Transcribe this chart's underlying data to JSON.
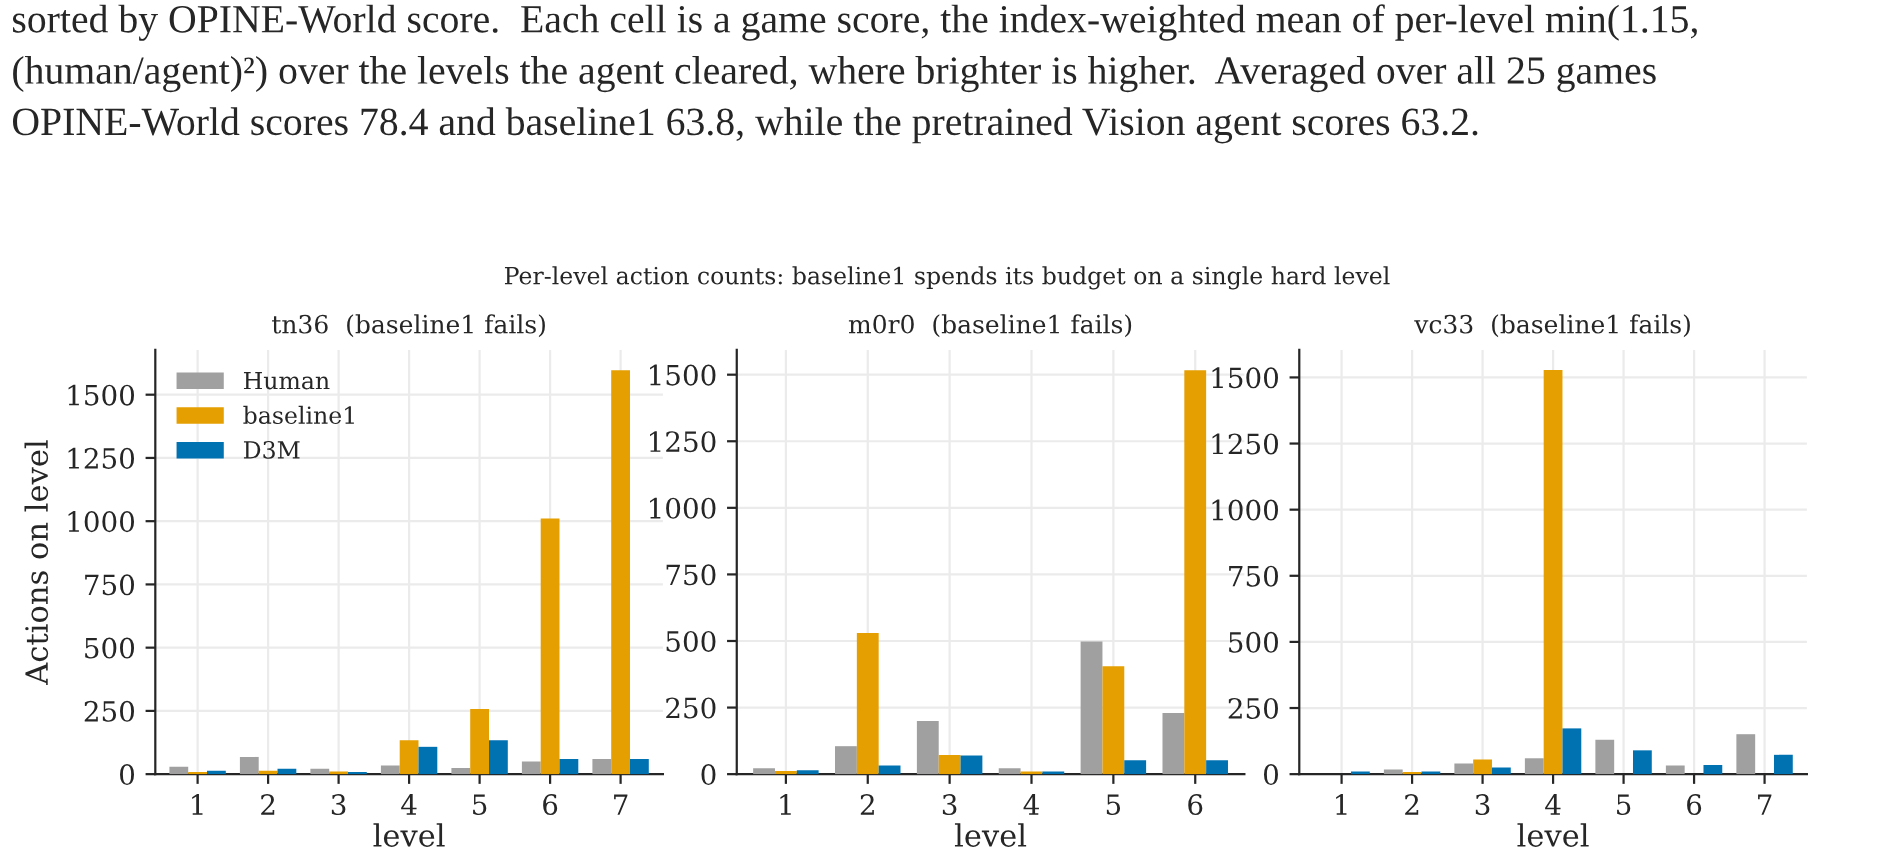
{
  "chart_data": [
    {
      "type": "bar",
      "title": "tn36  (baseline1 fails)",
      "xlabel": "level",
      "ylabel": "Actions on level",
      "annotations": [
        "sorted by OPINE-World score.  Each cell is a game score, the index-weighted mean of per-level min(1.15, (human/agent)²) over the levels the agent cleared, where brighter is higher.  Averaged over all 25 games OPINE-World scores 78.4 and baseline1 63.8, while the pretrained Vision agent scores 63.2.",
        "Per-level action counts: baseline1 spends its budget on a single hard level"
      ],
      "categories": [
        "1",
        "2",
        "3",
        "4",
        "5",
        "6",
        "7"
      ],
      "series": [
        {
          "name": "Human",
          "color": "#a0a0a0",
          "values": [
            29,
            68,
            21,
            34,
            24,
            50,
            60
          ]
        },
        {
          "name": "baseline1",
          "color": "#e69f00",
          "values": [
            8,
            13,
            10,
            134,
            258,
            1011,
            1597
          ]
        },
        {
          "name": "D3M",
          "color": "#0072b2",
          "values": [
            13,
            21,
            8,
            108,
            134,
            60,
            60
          ]
        }
      ],
      "ylim": [
        0,
        1677
      ],
      "yticks": [
        0,
        250,
        500,
        750,
        1000,
        1250,
        1500
      ],
      "grid": true,
      "legend": "top left"
    },
    {
      "type": "bar",
      "title": "m0r0  (baseline1 fails)",
      "xlabel": "level",
      "categories": [
        "1",
        "2",
        "3",
        "4",
        "5",
        "6"
      ],
      "series": [
        {
          "color": "#a0a0a0",
          "values": [
            22,
            105,
            200,
            22,
            498,
            230
          ]
        },
        {
          "color": "#e69f00",
          "values": [
            12,
            530,
            72,
            10,
            405,
            1517
          ]
        },
        {
          "color": "#0072b2",
          "values": [
            15,
            32,
            70,
            10,
            52,
            52
          ]
        }
      ],
      "ylim": [
        0,
        1593
      ],
      "yticks": [
        0,
        250,
        500,
        750,
        1000,
        1250,
        1500
      ],
      "grid": true
    },
    {
      "type": "bar",
      "title": "vc33  (baseline1 fails)",
      "xlabel": "level",
      "categories": [
        "1",
        "2",
        "3",
        "4",
        "5",
        "6",
        "7"
      ],
      "series": [
        {
          "color": "#a0a0a0",
          "values": [
            null,
            18,
            40,
            60,
            130,
            33,
            151
          ]
        },
        {
          "color": "#e69f00",
          "values": [
            null,
            8,
            55,
            1528,
            null,
            null,
            null
          ]
        },
        {
          "color": "#0072b2",
          "values": [
            10,
            10,
            25,
            173,
            90,
            35,
            73
          ]
        }
      ],
      "ylim": [
        0,
        1604
      ],
      "yticks": [
        0,
        250,
        500,
        750,
        1000,
        1250,
        1500
      ],
      "grid": true
    }
  ]
}
